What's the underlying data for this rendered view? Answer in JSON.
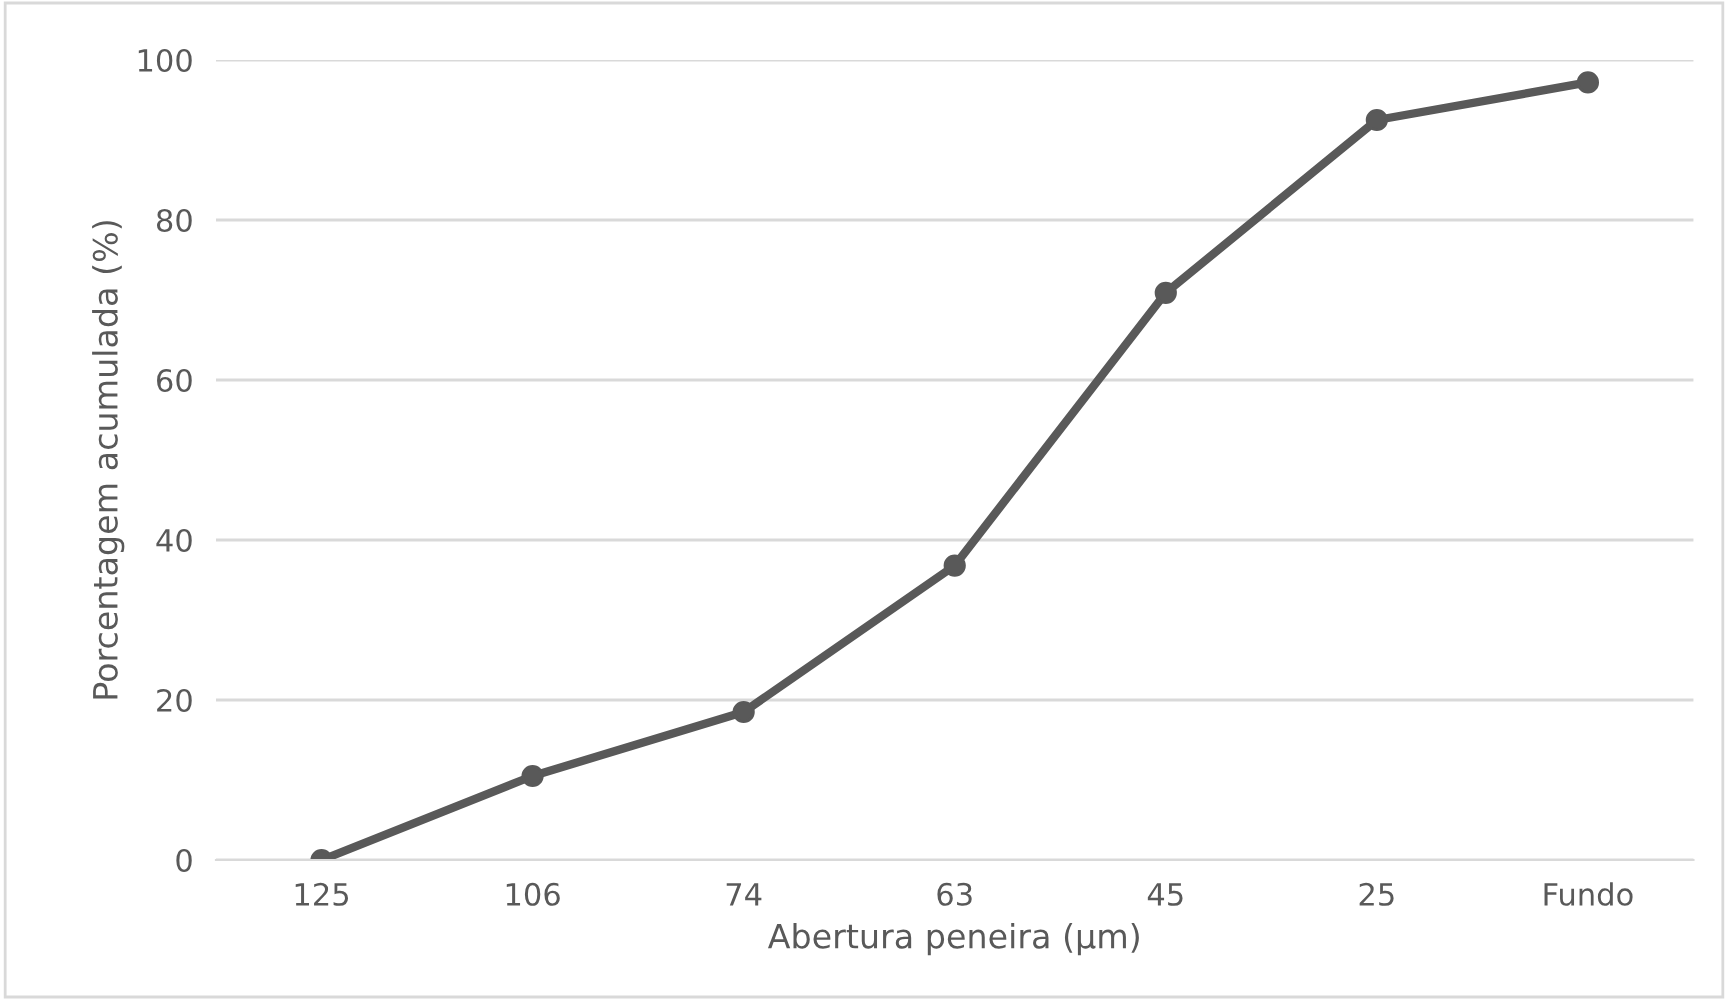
{
  "chart_data": {
    "type": "line",
    "xlabel": "Abertura peneira (µm)",
    "ylabel": "Porcentagem acumulada (%)",
    "categories": [
      "125",
      "106",
      "74",
      "63",
      "45",
      "25",
      "Fundo"
    ],
    "series": [
      {
        "color": "#595959",
        "values": [
          0,
          10.5,
          18.5,
          36.8,
          70.9,
          92.5,
          97.2
        ]
      }
    ],
    "ylim": [
      0,
      100
    ],
    "yticks": [
      0,
      20,
      40,
      60,
      80,
      100
    ],
    "grid": "y",
    "marker": "circle",
    "line_style": "solid",
    "legend": false
  }
}
